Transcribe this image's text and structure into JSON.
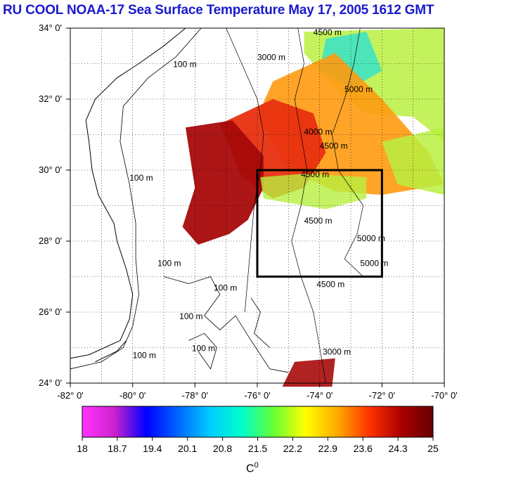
{
  "title": "RU COOL  NOAA-17 Sea Surface Temperature May 17, 2005 1612 GMT",
  "axes": {
    "y_ticks": [
      "34° 0'",
      "32° 0'",
      "30° 0'",
      "28° 0'",
      "26° 0'",
      "24° 0'"
    ],
    "x_ticks": [
      "-82° 0'",
      "-80° 0'",
      "-78° 0'",
      "-76° 0'",
      "-74° 0'",
      "-72° 0'",
      "-70° 0'"
    ],
    "lat_range": [
      24,
      34
    ],
    "lon_range": [
      -82,
      -70
    ],
    "grid": true
  },
  "contour_labels": [
    {
      "text": "100 m",
      "lon": -78.7,
      "lat": 32.9
    },
    {
      "text": "100 m",
      "lon": -80.1,
      "lat": 29.7
    },
    {
      "text": "100 m",
      "lon": -79.2,
      "lat": 27.3
    },
    {
      "text": "100 m",
      "lon": -78.5,
      "lat": 25.8
    },
    {
      "text": "100 m",
      "lon": -80.0,
      "lat": 24.7
    },
    {
      "text": "100 m",
      "lon": -77.4,
      "lat": 26.6
    },
    {
      "text": "100 m",
      "lon": -78.1,
      "lat": 24.9
    },
    {
      "text": "3000 m",
      "lon": -76.0,
      "lat": 33.1
    },
    {
      "text": "4500 m",
      "lon": -74.2,
      "lat": 33.8
    },
    {
      "text": "5000 m",
      "lon": -73.2,
      "lat": 32.2
    },
    {
      "text": "4000 m",
      "lon": -74.5,
      "lat": 31.0
    },
    {
      "text": "4500 m",
      "lon": -74.0,
      "lat": 30.6
    },
    {
      "text": "4500 m",
      "lon": -74.6,
      "lat": 29.8
    },
    {
      "text": "4500 m",
      "lon": -74.5,
      "lat": 28.5
    },
    {
      "text": "5000 m",
      "lon": -72.8,
      "lat": 28.0
    },
    {
      "text": "5000 m",
      "lon": -72.7,
      "lat": 27.3
    },
    {
      "text": "4500 m",
      "lon": -74.1,
      "lat": 26.7
    },
    {
      "text": "3000 m",
      "lon": -73.9,
      "lat": 24.8
    }
  ],
  "study_box": {
    "lon_min": -76,
    "lon_max": -72,
    "lat_min": 27,
    "lat_max": 30
  },
  "colorbar": {
    "ticks": [
      "18",
      "18.7",
      "19.4",
      "20.1",
      "20.8",
      "21.5",
      "22.2",
      "22.9",
      "23.6",
      "24.3",
      "25"
    ],
    "unit": "C",
    "unit_superscript": "0",
    "range": [
      18,
      25
    ],
    "colors": [
      "#ff33ff",
      "#cc22cc",
      "#0000ff",
      "#0066ff",
      "#00ccff",
      "#00ffcc",
      "#66ff33",
      "#ffff00",
      "#ffaa00",
      "#ff3300",
      "#aa0000",
      "#660000"
    ]
  },
  "colors": {
    "title": "#1a1acc",
    "coast": "#000000",
    "warm_core": "#a80a0a",
    "warm": "#e83010",
    "mid": "#ff9a10",
    "cool": "#b8f040",
    "cold": "#30e0d0"
  }
}
